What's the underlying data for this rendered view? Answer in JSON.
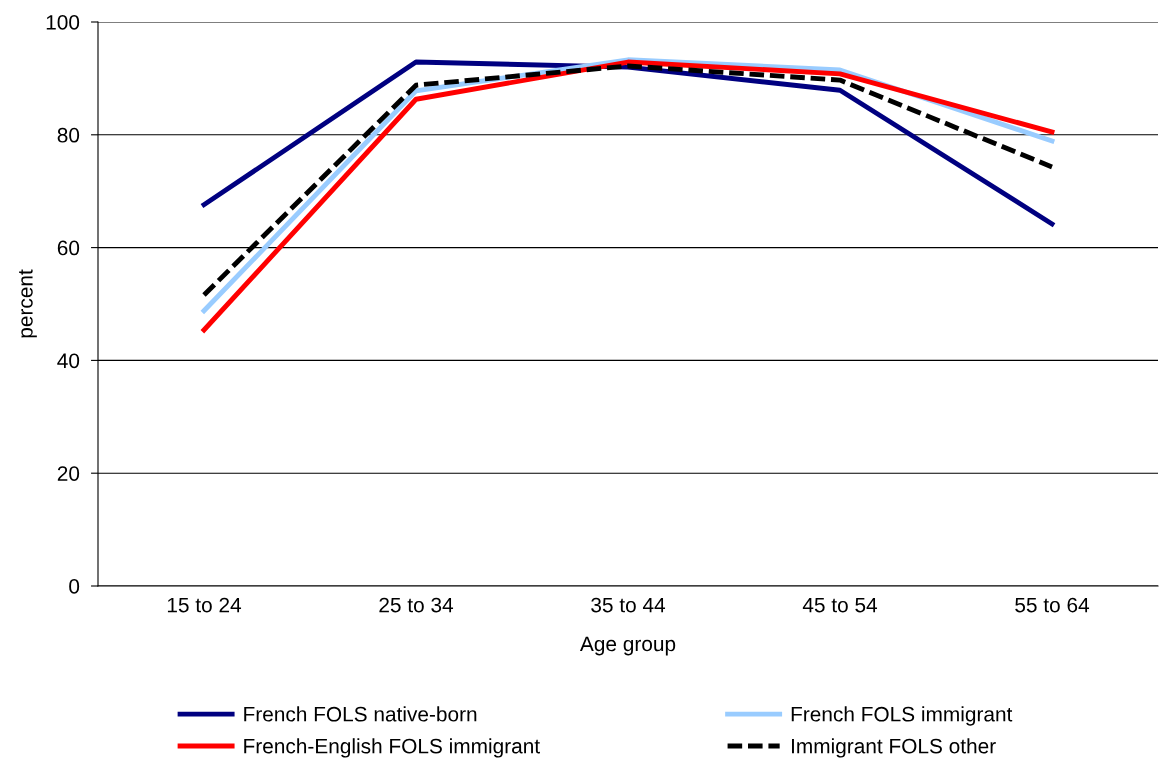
{
  "chart_data": {
    "type": "line",
    "xlabel": "Age group",
    "ylabel": "percent",
    "categories": [
      "15 to 24",
      "25 to 34",
      "35 to 44",
      "45 to 54",
      "55 to 64"
    ],
    "series": [
      {
        "name": "French FOLS native-born",
        "color": "#000080",
        "values": [
          67.6,
          92.9,
          92.0,
          87.9,
          64.2
        ]
      },
      {
        "name": "French FOLS immigrant",
        "color": "#99ccff",
        "values": [
          48.8,
          87.8,
          93.3,
          91.5,
          78.9
        ]
      },
      {
        "name": "French-English FOLS immigrant",
        "color": "#ff0000",
        "values": [
          45.4,
          86.3,
          92.9,
          90.8,
          80.5
        ]
      },
      {
        "name": "Immigrant FOLS other",
        "color": "#000000",
        "values": [
          51.6,
          88.8,
          92.2,
          89.7,
          74.3
        ],
        "line_style": "dashed"
      }
    ],
    "ylim": [
      0,
      100
    ],
    "yticks": [
      0,
      20,
      40,
      60,
      80,
      100
    ],
    "grid": "y",
    "legend": "bottom",
    "marker": "none"
  }
}
